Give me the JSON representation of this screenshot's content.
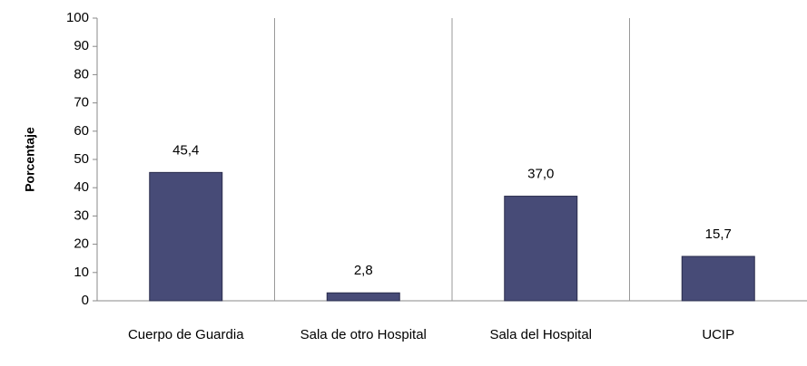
{
  "chart_data": {
    "type": "bar",
    "y_label": "Porcentaje",
    "categories": [
      "Cuerpo de Guardia",
      "Sala de otro Hospital",
      "Sala del Hospital",
      "UCIP"
    ],
    "values": [
      45.4,
      2.8,
      37.0,
      15.7
    ],
    "value_labels": [
      "45,4",
      "2,8",
      "37,0",
      "15,7"
    ],
    "color": "#474b77",
    "ylim": [
      0,
      100
    ],
    "yticks": [
      0,
      10,
      20,
      30,
      40,
      50,
      60,
      70,
      80,
      90,
      100
    ],
    "separators": true
  }
}
